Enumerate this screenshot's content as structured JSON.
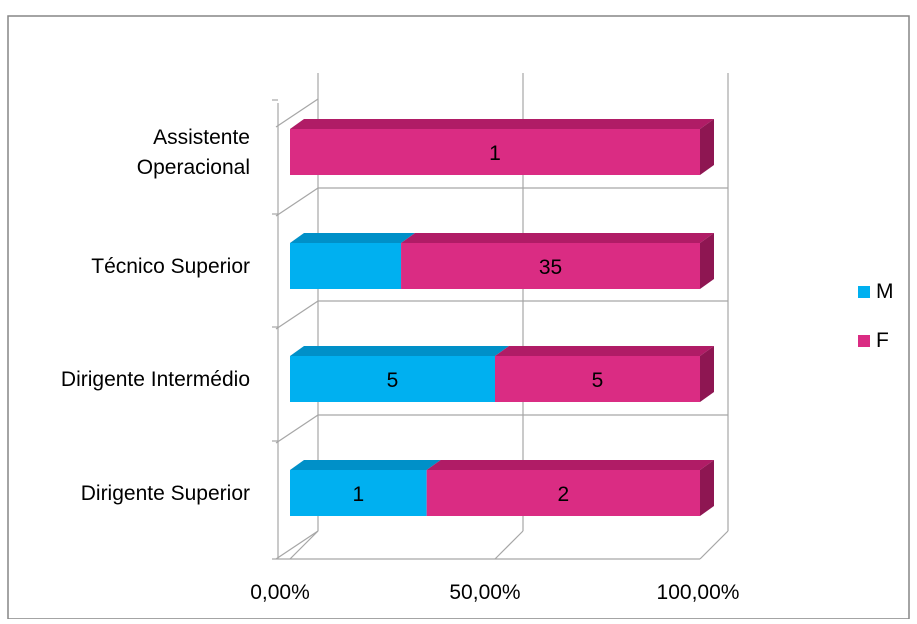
{
  "chart_data": {
    "type": "bar",
    "orientation": "horizontal",
    "stacked": "percent",
    "three_d": true,
    "categories": [
      "Assistente Operacional",
      "Técnico Superior",
      "Dirigente Intermédio",
      "Dirigente Superior"
    ],
    "category_lines": [
      [
        "Assistente",
        "Operacional"
      ],
      [
        "Técnico Superior"
      ],
      [
        "Dirigente Intermédio"
      ],
      [
        "Dirigente Superior"
      ]
    ],
    "series": [
      {
        "name": "M",
        "values": [
          0,
          13,
          5,
          1
        ],
        "labels": [
          "",
          "",
          "5",
          "1"
        ]
      },
      {
        "name": "F",
        "values": [
          1,
          35,
          5,
          2
        ],
        "labels": [
          "1",
          "35",
          "5",
          "2"
        ]
      }
    ],
    "x_ticks": [
      "0,00%",
      "50,00%",
      "100,00%"
    ],
    "xlim": [
      0,
      1
    ],
    "grid": true,
    "legend": "right",
    "colors": {
      "M_front": "#00B0F0",
      "M_top": "#0090C8",
      "M_side": "#0078A8",
      "F_front": "#DA2C83",
      "F_top": "#B01C66",
      "F_side": "#8E1652",
      "grid": "#A6A6A6",
      "frame": "#868686"
    }
  }
}
